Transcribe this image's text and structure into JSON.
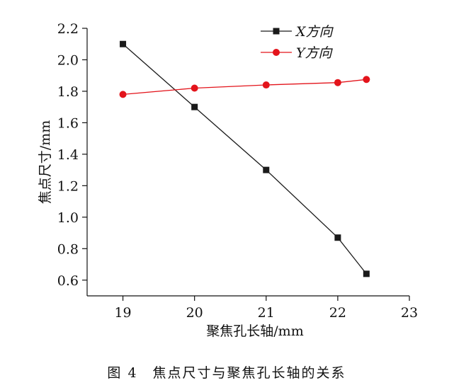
{
  "chart_data": {
    "type": "line",
    "title": "",
    "caption": "图 4　焦点尺寸与聚焦孔长轴的关系",
    "xlabel": "聚焦孔长轴/mm",
    "ylabel": "焦点尺寸/mm",
    "xlim": [
      18.5,
      23
    ],
    "ylim": [
      0.5,
      2.2
    ],
    "xticks": [
      19,
      20,
      21,
      22,
      23
    ],
    "yticks": [
      0.6,
      0.8,
      1.0,
      1.2,
      1.4,
      1.6,
      1.8,
      2.0,
      2.2
    ],
    "xtick_labels": [
      "19",
      "20",
      "21",
      "22",
      "23"
    ],
    "ytick_labels": [
      "0.6",
      "0.8",
      "1.0",
      "1.2",
      "1.4",
      "1.6",
      "1.8",
      "2.0",
      "2.2"
    ],
    "grid": false,
    "legend_position": "top-right",
    "series": [
      {
        "name": "X方向",
        "color": "#1a1a1a",
        "marker": "square",
        "x": [
          19,
          20,
          21,
          22,
          22.4
        ],
        "values": [
          2.1,
          1.7,
          1.3,
          0.87,
          0.64
        ]
      },
      {
        "name": "Y方向",
        "color": "#e3141b",
        "marker": "circle",
        "x": [
          19,
          20,
          21,
          22,
          22.4
        ],
        "values": [
          1.78,
          1.82,
          1.84,
          1.855,
          1.875
        ]
      }
    ]
  }
}
